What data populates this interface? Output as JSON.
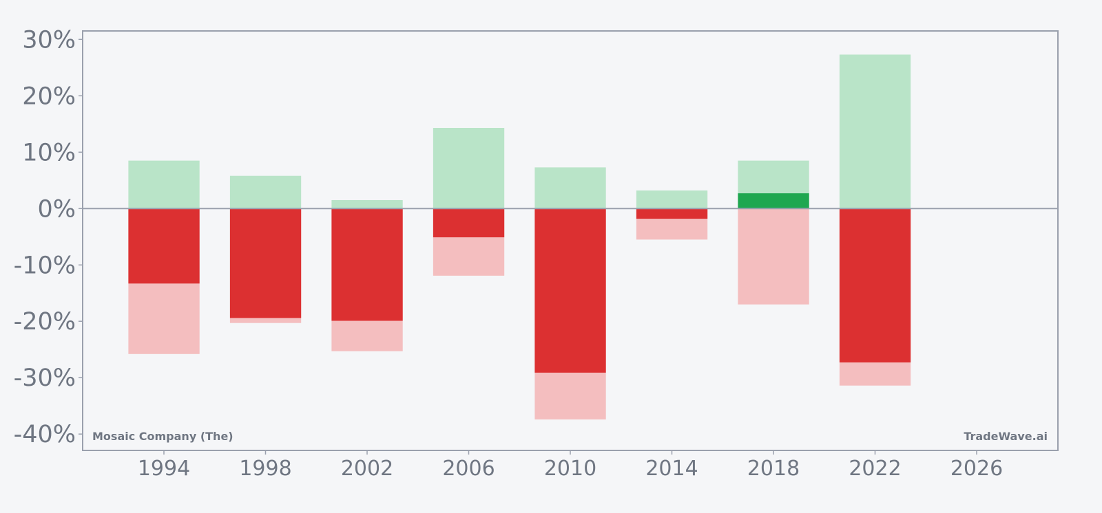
{
  "chart_data": {
    "type": "bar",
    "x": [
      1994,
      1998,
      2002,
      2006,
      2010,
      2014,
      2018,
      2022
    ],
    "series": [
      {
        "values": [
          8.5,
          5.8,
          1.5,
          14.3,
          7.3,
          3.2,
          8.5,
          27.3
        ]
      },
      {
        "values": [
          -13.3,
          -19.4,
          -19.9,
          -5.1,
          -29.1,
          -1.8,
          2.7,
          -27.3
        ]
      },
      {
        "values": [
          -25.8,
          -20.3,
          -25.3,
          -11.9,
          -37.4,
          -5.5,
          -17.0,
          -31.4
        ]
      }
    ],
    "xlim": [
      1990.8,
      2029.2
    ],
    "ylim": [
      -42.9,
      31.5
    ],
    "x_ticks": [
      1994,
      1998,
      2002,
      2006,
      2010,
      2014,
      2018,
      2022,
      2026
    ],
    "y_ticks": [
      30,
      20,
      10,
      0,
      -10,
      -20,
      -30,
      -40
    ],
    "y_tick_labels": [
      "30%",
      "20%",
      "10%",
      "0%",
      "-10%",
      "-20%",
      "-30%",
      "-40%"
    ],
    "grid": false,
    "colors": {
      "up_light": "#b9e4c8",
      "up_strong": "#1fa750",
      "down_strong": "#dc3031",
      "down_light": "#f4bebf",
      "axis": "#9aa0ad",
      "text": "#6f7682"
    }
  },
  "annotations": {
    "left": "Mosaic Company (The)",
    "right": "TradeWave.ai"
  }
}
